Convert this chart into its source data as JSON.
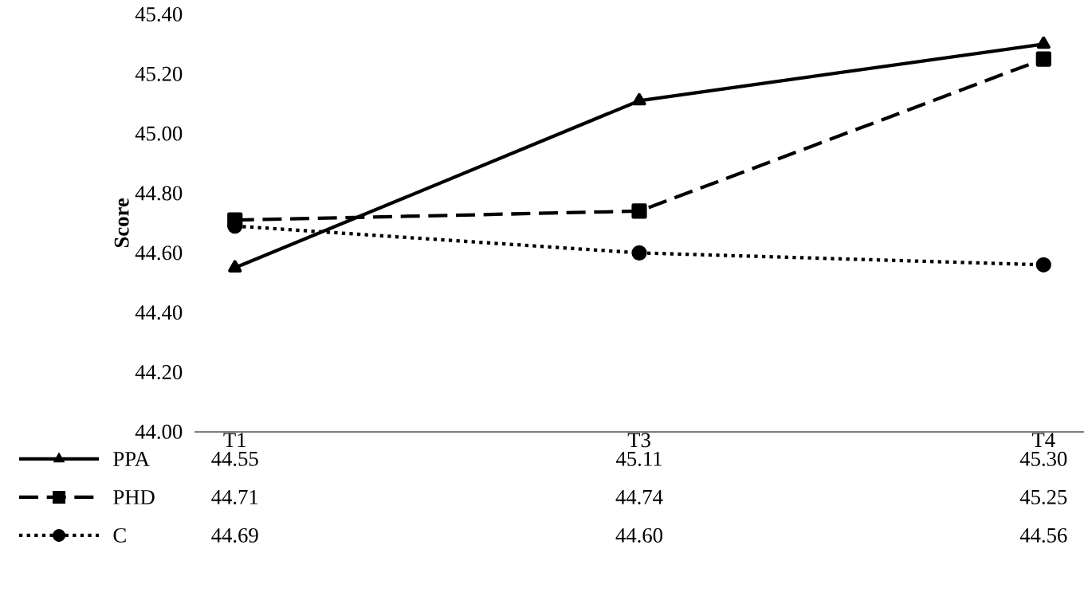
{
  "chart_data": {
    "type": "line",
    "ylabel": "Score",
    "categories": [
      "T1",
      "T3",
      "T4"
    ],
    "ylim": [
      44.0,
      45.4
    ],
    "yticks": [
      {
        "value": 44.0,
        "label": "44.00"
      },
      {
        "value": 44.2,
        "label": "44.20"
      },
      {
        "value": 44.4,
        "label": "44.40"
      },
      {
        "value": 44.6,
        "label": "44.60"
      },
      {
        "value": 44.8,
        "label": "44.80"
      },
      {
        "value": 45.0,
        "label": "45.00"
      },
      {
        "value": 45.2,
        "label": "45.20"
      },
      {
        "value": 45.4,
        "label": "45.40"
      }
    ],
    "legend": "bottom",
    "grid": false,
    "series": [
      {
        "name": "PPA",
        "color": "#000000",
        "marker": "triangle",
        "line_style": "solid",
        "values": [
          44.55,
          45.11,
          45.3
        ],
        "value_labels": [
          "44.55",
          "45.11",
          "45.30"
        ]
      },
      {
        "name": "PHD",
        "color": "#000000",
        "marker": "square",
        "line_style": "dashed",
        "values": [
          44.71,
          44.74,
          45.25
        ],
        "value_labels": [
          "44.71",
          "44.74",
          "45.25"
        ]
      },
      {
        "name": "C",
        "color": "#000000",
        "marker": "circle",
        "line_style": "dotted",
        "values": [
          44.69,
          44.6,
          44.56
        ],
        "value_labels": [
          "44.69",
          "44.60",
          "44.56"
        ]
      }
    ]
  }
}
